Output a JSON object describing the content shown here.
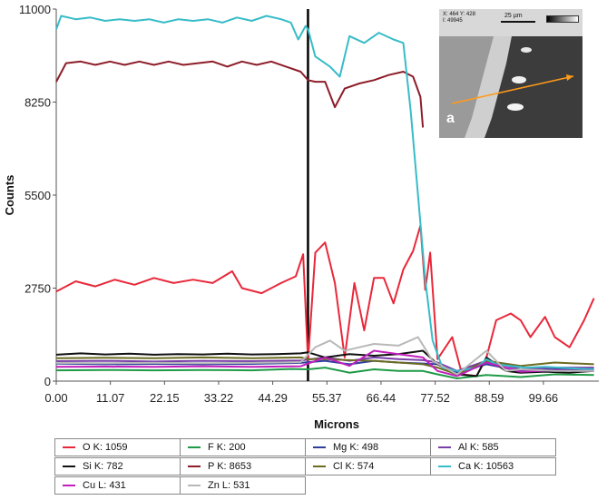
{
  "chart_data": {
    "type": "line",
    "title": "",
    "xlabel": "Microns",
    "ylabel": "Counts",
    "xlim": [
      0,
      111
    ],
    "ylim": [
      0,
      11000
    ],
    "x_ticks": [
      "0.00",
      "11.07",
      "22.15",
      "33.22",
      "44.29",
      "55.37",
      "66.44",
      "77.52",
      "88.59",
      "99.66"
    ],
    "y_ticks": [
      "0",
      "2750",
      "5500",
      "8250",
      "11000"
    ],
    "grid": false,
    "boundary_x": 51.5,
    "legend_position": "bottom",
    "series": [
      {
        "name": "O K: 1059",
        "color": "#e8283a",
        "points": [
          [
            0,
            2650
          ],
          [
            4,
            2950
          ],
          [
            8,
            2800
          ],
          [
            12,
            3000
          ],
          [
            16,
            2850
          ],
          [
            20,
            3050
          ],
          [
            24,
            2900
          ],
          [
            28,
            3000
          ],
          [
            32,
            2900
          ],
          [
            36,
            3250
          ],
          [
            38,
            2750
          ],
          [
            42,
            2600
          ],
          [
            46,
            2900
          ],
          [
            49,
            3100
          ],
          [
            50.5,
            3750
          ],
          [
            51.5,
            600
          ],
          [
            53,
            3800
          ],
          [
            55,
            4100
          ],
          [
            57,
            2900
          ],
          [
            59,
            700
          ],
          [
            61,
            2900
          ],
          [
            63,
            1500
          ],
          [
            65,
            3050
          ],
          [
            67,
            3050
          ],
          [
            69,
            2300
          ],
          [
            71,
            3300
          ],
          [
            73,
            3850
          ],
          [
            74.5,
            4600
          ],
          [
            75.5,
            2700
          ],
          [
            76.5,
            3800
          ],
          [
            78,
            650
          ],
          [
            81,
            1300
          ],
          [
            83,
            200
          ],
          [
            86,
            150
          ],
          [
            88,
            700
          ],
          [
            90,
            1800
          ],
          [
            93,
            2000
          ],
          [
            95,
            1800
          ],
          [
            97,
            1300
          ],
          [
            100,
            1900
          ],
          [
            102,
            1300
          ],
          [
            105,
            1000
          ],
          [
            108,
            1800
          ],
          [
            110,
            2450
          ]
        ]
      },
      {
        "name": "F K: 200",
        "color": "#1f9a46",
        "points": [
          [
            0,
            320
          ],
          [
            10,
            330
          ],
          [
            20,
            320
          ],
          [
            30,
            330
          ],
          [
            40,
            320
          ],
          [
            48,
            360
          ],
          [
            51.5,
            350
          ],
          [
            55,
            400
          ],
          [
            60,
            250
          ],
          [
            65,
            350
          ],
          [
            70,
            300
          ],
          [
            75,
            300
          ],
          [
            78,
            200
          ],
          [
            82,
            80
          ],
          [
            88,
            180
          ],
          [
            95,
            120
          ],
          [
            102,
            200
          ],
          [
            110,
            180
          ]
        ]
      },
      {
        "name": "Mg K: 498",
        "color": "#2c3e9e",
        "points": [
          [
            0,
            520
          ],
          [
            10,
            500
          ],
          [
            20,
            510
          ],
          [
            30,
            500
          ],
          [
            40,
            510
          ],
          [
            50,
            540
          ],
          [
            55,
            600
          ],
          [
            60,
            500
          ],
          [
            65,
            600
          ],
          [
            70,
            550
          ],
          [
            75,
            520
          ],
          [
            78,
            500
          ],
          [
            82,
            250
          ],
          [
            88,
            500
          ],
          [
            95,
            300
          ],
          [
            102,
            350
          ],
          [
            110,
            350
          ]
        ]
      },
      {
        "name": "Al K: 585",
        "color": "#7a3ea8",
        "points": [
          [
            0,
            590
          ],
          [
            10,
            600
          ],
          [
            20,
            580
          ],
          [
            30,
            600
          ],
          [
            40,
            590
          ],
          [
            50,
            610
          ],
          [
            55,
            700
          ],
          [
            60,
            600
          ],
          [
            65,
            700
          ],
          [
            70,
            650
          ],
          [
            75,
            620
          ],
          [
            78,
            550
          ],
          [
            82,
            300
          ],
          [
            88,
            600
          ],
          [
            95,
            350
          ],
          [
            102,
            400
          ],
          [
            110,
            400
          ]
        ]
      },
      {
        "name": "Si K: 782",
        "color": "#111111",
        "points": [
          [
            0,
            780
          ],
          [
            5,
            820
          ],
          [
            10,
            790
          ],
          [
            15,
            810
          ],
          [
            20,
            780
          ],
          [
            25,
            800
          ],
          [
            30,
            790
          ],
          [
            35,
            810
          ],
          [
            40,
            790
          ],
          [
            45,
            800
          ],
          [
            50,
            820
          ],
          [
            51.5,
            850
          ],
          [
            55,
            700
          ],
          [
            60,
            800
          ],
          [
            65,
            750
          ],
          [
            70,
            800
          ],
          [
            75,
            900
          ],
          [
            78,
            500
          ],
          [
            82,
            200
          ],
          [
            86,
            150
          ],
          [
            88,
            700
          ],
          [
            92,
            300
          ],
          [
            95,
            250
          ],
          [
            100,
            280
          ],
          [
            105,
            250
          ],
          [
            110,
            300
          ]
        ]
      },
      {
        "name": "P K: 8653",
        "color": "#8e1d2a",
        "points": [
          [
            0,
            8850
          ],
          [
            2,
            9400
          ],
          [
            5,
            9450
          ],
          [
            8,
            9350
          ],
          [
            11,
            9450
          ],
          [
            14,
            9350
          ],
          [
            17,
            9450
          ],
          [
            20,
            9350
          ],
          [
            23,
            9450
          ],
          [
            26,
            9350
          ],
          [
            29,
            9400
          ],
          [
            32,
            9450
          ],
          [
            35,
            9300
          ],
          [
            38,
            9450
          ],
          [
            41,
            9350
          ],
          [
            44,
            9450
          ],
          [
            47,
            9300
          ],
          [
            50,
            9150
          ],
          [
            51.5,
            8900
          ],
          [
            53,
            8850
          ],
          [
            55,
            8850
          ],
          [
            57,
            8100
          ],
          [
            59,
            8650
          ],
          [
            62,
            8800
          ],
          [
            65,
            8900
          ],
          [
            68,
            9050
          ],
          [
            71,
            9150
          ],
          [
            73,
            9000
          ],
          [
            74.5,
            8400
          ],
          [
            75,
            7500
          ]
        ]
      },
      {
        "name": "Cl K: 574",
        "color": "#6b6b22",
        "points": [
          [
            0,
            680
          ],
          [
            10,
            690
          ],
          [
            20,
            680
          ],
          [
            30,
            700
          ],
          [
            40,
            680
          ],
          [
            50,
            700
          ],
          [
            51.5,
            650
          ],
          [
            55,
            650
          ],
          [
            60,
            620
          ],
          [
            65,
            600
          ],
          [
            70,
            550
          ],
          [
            75,
            500
          ],
          [
            78,
            400
          ],
          [
            82,
            200
          ],
          [
            88,
            600
          ],
          [
            95,
            450
          ],
          [
            102,
            550
          ],
          [
            110,
            500
          ]
        ]
      },
      {
        "name": "Ca K: 10563",
        "color": "#37bcc8",
        "points": [
          [
            0,
            10400
          ],
          [
            1,
            10800
          ],
          [
            4,
            10700
          ],
          [
            7,
            10750
          ],
          [
            10,
            10650
          ],
          [
            13,
            10700
          ],
          [
            16,
            10650
          ],
          [
            19,
            10700
          ],
          [
            22,
            10600
          ],
          [
            25,
            10700
          ],
          [
            28,
            10650
          ],
          [
            31,
            10700
          ],
          [
            34,
            10600
          ],
          [
            37,
            10750
          ],
          [
            40,
            10650
          ],
          [
            43,
            10800
          ],
          [
            46,
            10700
          ],
          [
            48,
            10600
          ],
          [
            49.5,
            10100
          ],
          [
            51,
            10500
          ],
          [
            51.5,
            10400
          ],
          [
            53,
            9600
          ],
          [
            56,
            9300
          ],
          [
            58,
            9000
          ],
          [
            60,
            10200
          ],
          [
            63,
            10000
          ],
          [
            66,
            10300
          ],
          [
            69,
            10100
          ],
          [
            71,
            10000
          ],
          [
            72.5,
            8000
          ],
          [
            74,
            5500
          ],
          [
            75.5,
            3000
          ],
          [
            77,
            1200
          ],
          [
            79,
            400
          ],
          [
            82,
            300
          ],
          [
            84,
            350
          ],
          [
            86,
            400
          ],
          [
            88,
            650
          ],
          [
            90,
            500
          ],
          [
            93,
            450
          ],
          [
            96,
            400
          ],
          [
            100,
            420
          ],
          [
            105,
            380
          ],
          [
            110,
            350
          ]
        ]
      },
      {
        "name": "Cu L: 431",
        "color": "#c11fbb",
        "points": [
          [
            0,
            420
          ],
          [
            10,
            430
          ],
          [
            20,
            420
          ],
          [
            30,
            440
          ],
          [
            40,
            420
          ],
          [
            50,
            440
          ],
          [
            55,
            700
          ],
          [
            60,
            450
          ],
          [
            65,
            900
          ],
          [
            70,
            800
          ],
          [
            75,
            700
          ],
          [
            78,
            300
          ],
          [
            82,
            150
          ],
          [
            88,
            550
          ],
          [
            95,
            280
          ],
          [
            102,
            320
          ],
          [
            110,
            300
          ]
        ]
      },
      {
        "name": "Zn L: 531",
        "color": "#b8b8b8",
        "points": [
          [
            0,
            540
          ],
          [
            10,
            530
          ],
          [
            20,
            540
          ],
          [
            30,
            530
          ],
          [
            40,
            540
          ],
          [
            50,
            560
          ],
          [
            53,
            1000
          ],
          [
            56,
            1200
          ],
          [
            59,
            900
          ],
          [
            62,
            1000
          ],
          [
            65,
            1100
          ],
          [
            70,
            1050
          ],
          [
            74,
            1300
          ],
          [
            77,
            600
          ],
          [
            82,
            200
          ],
          [
            88,
            900
          ],
          [
            92,
            300
          ],
          [
            95,
            350
          ],
          [
            102,
            300
          ],
          [
            110,
            300
          ]
        ]
      }
    ]
  },
  "inset": {
    "letter": "a",
    "header_line1": "X: 464 Y: 428",
    "header_line2": "I: 49945",
    "scale_label": "25 µm"
  }
}
